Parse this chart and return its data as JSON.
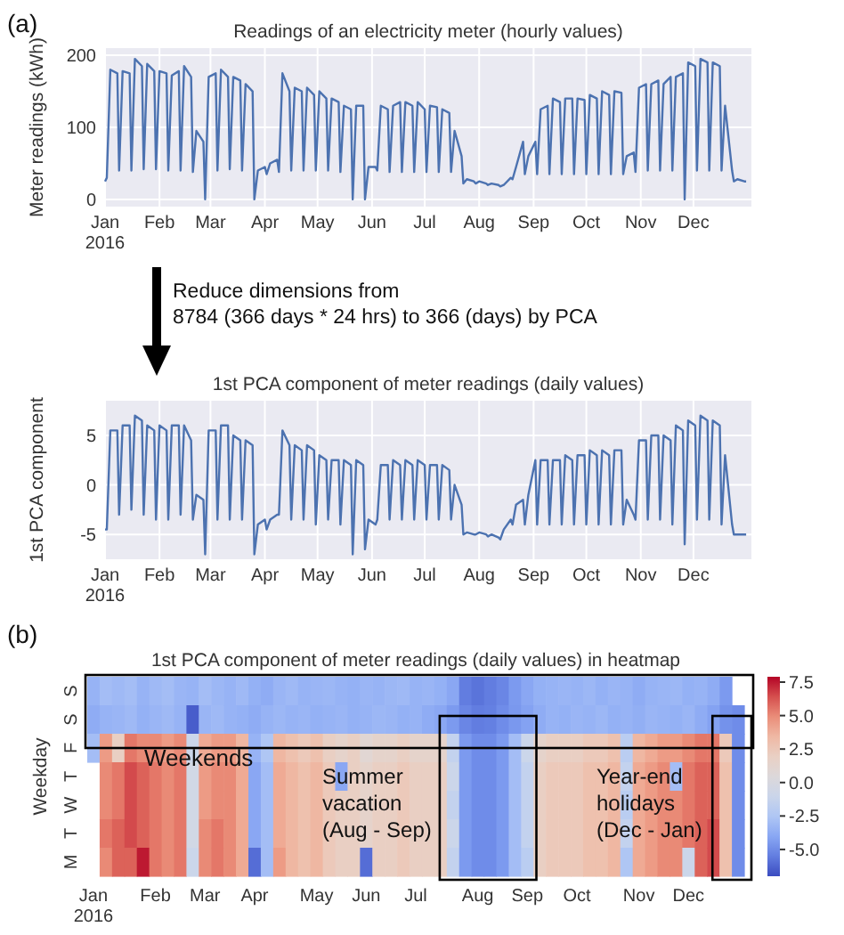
{
  "chart_data": [
    {
      "type": "line",
      "title": "Readings of an electricity meter (hourly values)",
      "ylabel": "Meter readings (kWh)",
      "grid": true,
      "xlim": [
        "2016-01-01",
        "2017-01-03"
      ],
      "ylim": [
        -10,
        210
      ],
      "yticks": [
        0,
        100,
        200
      ],
      "xticks": [
        {
          "value": "2016-01-01",
          "label": "Jan\n2016"
        },
        {
          "value": "2016-02-01",
          "label": "Feb"
        },
        {
          "value": "2016-03-01",
          "label": "Mar"
        },
        {
          "value": "2016-04-01",
          "label": "Apr"
        },
        {
          "value": "2016-05-01",
          "label": "May"
        },
        {
          "value": "2016-06-01",
          "label": "Jun"
        },
        {
          "value": "2016-07-01",
          "label": "Jul"
        },
        {
          "value": "2016-08-01",
          "label": "Aug"
        },
        {
          "value": "2016-09-01",
          "label": "Sep"
        },
        {
          "value": "2016-10-01",
          "label": "Oct"
        },
        {
          "value": "2016-11-01",
          "label": "Nov"
        },
        {
          "value": "2016-12-01",
          "label": "Dec"
        }
      ],
      "annotations": [
        "(a)"
      ],
      "x": [
        "2016-01-01",
        "2016-01-02",
        "2016-01-04",
        "2016-01-08",
        "2016-01-09",
        "2016-01-11",
        "2016-01-15",
        "2016-01-16",
        "2016-01-18",
        "2016-01-22",
        "2016-01-23",
        "2016-01-25",
        "2016-01-29",
        "2016-01-30",
        "2016-02-01",
        "2016-02-05",
        "2016-02-06",
        "2016-02-08",
        "2016-02-12",
        "2016-02-13",
        "2016-02-15",
        "2016-02-19",
        "2016-02-20",
        "2016-02-22",
        "2016-02-26",
        "2016-02-27",
        "2016-02-29",
        "2016-03-04",
        "2016-03-05",
        "2016-03-07",
        "2016-03-11",
        "2016-03-12",
        "2016-03-14",
        "2016-03-18",
        "2016-03-19",
        "2016-03-21",
        "2016-03-25",
        "2016-03-26",
        "2016-03-28",
        "2016-04-01",
        "2016-04-02",
        "2016-04-04",
        "2016-04-08",
        "2016-04-09",
        "2016-04-11",
        "2016-04-15",
        "2016-04-16",
        "2016-04-18",
        "2016-04-22",
        "2016-04-23",
        "2016-04-25",
        "2016-04-29",
        "2016-04-30",
        "2016-05-02",
        "2016-05-06",
        "2016-05-07",
        "2016-05-09",
        "2016-05-13",
        "2016-05-14",
        "2016-05-16",
        "2016-05-20",
        "2016-05-21",
        "2016-05-23",
        "2016-05-27",
        "2016-05-28",
        "2016-05-30",
        "2016-06-03",
        "2016-06-04",
        "2016-06-06",
        "2016-06-10",
        "2016-06-11",
        "2016-06-13",
        "2016-06-17",
        "2016-06-18",
        "2016-06-20",
        "2016-06-24",
        "2016-06-25",
        "2016-06-27",
        "2016-07-01",
        "2016-07-02",
        "2016-07-04",
        "2016-07-08",
        "2016-07-09",
        "2016-07-11",
        "2016-07-15",
        "2016-07-16",
        "2016-07-18",
        "2016-07-22",
        "2016-07-23",
        "2016-07-25",
        "2016-07-29",
        "2016-07-30",
        "2016-08-01",
        "2016-08-05",
        "2016-08-06",
        "2016-08-08",
        "2016-08-12",
        "2016-08-13",
        "2016-08-15",
        "2016-08-19",
        "2016-08-20",
        "2016-08-22",
        "2016-08-26",
        "2016-08-27",
        "2016-08-29",
        "2016-09-02",
        "2016-09-03",
        "2016-09-05",
        "2016-09-09",
        "2016-09-10",
        "2016-09-12",
        "2016-09-16",
        "2016-09-17",
        "2016-09-19",
        "2016-09-23",
        "2016-09-24",
        "2016-09-26",
        "2016-09-30",
        "2016-10-01",
        "2016-10-03",
        "2016-10-07",
        "2016-10-08",
        "2016-10-10",
        "2016-10-14",
        "2016-10-15",
        "2016-10-17",
        "2016-10-21",
        "2016-10-22",
        "2016-10-24",
        "2016-10-28",
        "2016-10-29",
        "2016-10-31",
        "2016-11-04",
        "2016-11-05",
        "2016-11-07",
        "2016-11-11",
        "2016-11-12",
        "2016-11-14",
        "2016-11-18",
        "2016-11-19",
        "2016-11-21",
        "2016-11-25",
        "2016-11-26",
        "2016-11-28",
        "2016-12-02",
        "2016-12-03",
        "2016-12-05",
        "2016-12-09",
        "2016-12-10",
        "2016-12-12",
        "2016-12-16",
        "2016-12-17",
        "2016-12-19",
        "2016-12-23",
        "2016-12-24",
        "2016-12-26",
        "2016-12-30",
        "2016-12-31"
      ],
      "series": [
        {
          "color": "#4c72b0",
          "values": [
            25,
            30,
            180,
            175,
            40,
            178,
            175,
            40,
            195,
            185,
            42,
            188,
            178,
            42,
            178,
            175,
            40,
            172,
            178,
            40,
            185,
            170,
            38,
            95,
            80,
            0,
            170,
            175,
            40,
            180,
            170,
            42,
            170,
            165,
            40,
            160,
            150,
            0,
            40,
            45,
            35,
            50,
            55,
            38,
            175,
            150,
            40,
            155,
            150,
            40,
            155,
            145,
            40,
            150,
            140,
            40,
            140,
            135,
            38,
            130,
            125,
            0,
            130,
            130,
            0,
            45,
            45,
            40,
            130,
            125,
            38,
            130,
            135,
            38,
            135,
            130,
            38,
            135,
            125,
            38,
            130,
            128,
            38,
            125,
            120,
            38,
            95,
            60,
            22,
            28,
            25,
            22,
            25,
            22,
            20,
            22,
            20,
            18,
            20,
            30,
            28,
            45,
            80,
            35,
            60,
            80,
            35,
            125,
            130,
            35,
            140,
            135,
            35,
            140,
            140,
            35,
            140,
            138,
            35,
            145,
            140,
            35,
            150,
            145,
            35,
            150,
            148,
            35,
            60,
            65,
            38,
            155,
            160,
            40,
            160,
            165,
            40,
            160,
            170,
            40,
            170,
            175,
            0,
            190,
            185,
            40,
            195,
            190,
            40,
            190,
            185,
            40,
            130,
            40,
            25,
            28,
            25,
            25
          ]
        }
      ]
    },
    {
      "type": "line",
      "title": "1st PCA component of meter readings (daily values)",
      "ylabel": "1st PCA component",
      "grid": true,
      "xlim": [
        "2016-01-01",
        "2017-01-03"
      ],
      "ylim": [
        -7.5,
        8.5
      ],
      "yticks": [
        -5,
        0,
        5
      ],
      "xticks": [
        {
          "value": "2016-01-01",
          "label": "Jan\n2016"
        },
        {
          "value": "2016-02-01",
          "label": "Feb"
        },
        {
          "value": "2016-03-01",
          "label": "Mar"
        },
        {
          "value": "2016-04-01",
          "label": "Apr"
        },
        {
          "value": "2016-05-01",
          "label": "May"
        },
        {
          "value": "2016-06-01",
          "label": "Jun"
        },
        {
          "value": "2016-07-01",
          "label": "Jul"
        },
        {
          "value": "2016-08-01",
          "label": "Aug"
        },
        {
          "value": "2016-09-01",
          "label": "Sep"
        },
        {
          "value": "2016-10-01",
          "label": "Oct"
        },
        {
          "value": "2016-11-01",
          "label": "Nov"
        },
        {
          "value": "2016-12-01",
          "label": "Dec"
        }
      ],
      "annotations": [
        "Reduce dimensions from\n8784 (366 days * 24 hrs) to 366 (days) by PCA"
      ],
      "x": [
        "2016-01-01",
        "2016-01-02",
        "2016-01-04",
        "2016-01-08",
        "2016-01-09",
        "2016-01-11",
        "2016-01-15",
        "2016-01-16",
        "2016-01-18",
        "2016-01-22",
        "2016-01-23",
        "2016-01-25",
        "2016-01-29",
        "2016-01-30",
        "2016-02-01",
        "2016-02-05",
        "2016-02-06",
        "2016-02-08",
        "2016-02-12",
        "2016-02-13",
        "2016-02-15",
        "2016-02-19",
        "2016-02-20",
        "2016-02-22",
        "2016-02-26",
        "2016-02-27",
        "2016-02-29",
        "2016-03-04",
        "2016-03-05",
        "2016-03-07",
        "2016-03-11",
        "2016-03-12",
        "2016-03-14",
        "2016-03-18",
        "2016-03-19",
        "2016-03-21",
        "2016-03-25",
        "2016-03-26",
        "2016-03-28",
        "2016-04-01",
        "2016-04-02",
        "2016-04-04",
        "2016-04-08",
        "2016-04-09",
        "2016-04-11",
        "2016-04-15",
        "2016-04-16",
        "2016-04-18",
        "2016-04-22",
        "2016-04-23",
        "2016-04-25",
        "2016-04-29",
        "2016-04-30",
        "2016-05-02",
        "2016-05-06",
        "2016-05-07",
        "2016-05-09",
        "2016-05-13",
        "2016-05-14",
        "2016-05-16",
        "2016-05-20",
        "2016-05-21",
        "2016-05-23",
        "2016-05-27",
        "2016-05-28",
        "2016-05-30",
        "2016-06-03",
        "2016-06-04",
        "2016-06-06",
        "2016-06-10",
        "2016-06-11",
        "2016-06-13",
        "2016-06-17",
        "2016-06-18",
        "2016-06-20",
        "2016-06-24",
        "2016-06-25",
        "2016-06-27",
        "2016-07-01",
        "2016-07-02",
        "2016-07-04",
        "2016-07-08",
        "2016-07-09",
        "2016-07-11",
        "2016-07-15",
        "2016-07-16",
        "2016-07-18",
        "2016-07-22",
        "2016-07-23",
        "2016-07-25",
        "2016-07-29",
        "2016-07-30",
        "2016-08-01",
        "2016-08-05",
        "2016-08-06",
        "2016-08-08",
        "2016-08-12",
        "2016-08-13",
        "2016-08-15",
        "2016-08-19",
        "2016-08-20",
        "2016-08-22",
        "2016-08-26",
        "2016-08-27",
        "2016-08-29",
        "2016-09-02",
        "2016-09-03",
        "2016-09-05",
        "2016-09-09",
        "2016-09-10",
        "2016-09-12",
        "2016-09-16",
        "2016-09-17",
        "2016-09-19",
        "2016-09-23",
        "2016-09-24",
        "2016-09-26",
        "2016-09-30",
        "2016-10-01",
        "2016-10-03",
        "2016-10-07",
        "2016-10-08",
        "2016-10-10",
        "2016-10-14",
        "2016-10-15",
        "2016-10-17",
        "2016-10-21",
        "2016-10-22",
        "2016-10-24",
        "2016-10-28",
        "2016-10-29",
        "2016-10-31",
        "2016-11-04",
        "2016-11-05",
        "2016-11-07",
        "2016-11-11",
        "2016-11-12",
        "2016-11-14",
        "2016-11-18",
        "2016-11-19",
        "2016-11-21",
        "2016-11-25",
        "2016-11-26",
        "2016-11-28",
        "2016-12-02",
        "2016-12-03",
        "2016-12-05",
        "2016-12-09",
        "2016-12-10",
        "2016-12-12",
        "2016-12-16",
        "2016-12-17",
        "2016-12-19",
        "2016-12-23",
        "2016-12-24",
        "2016-12-26",
        "2016-12-30",
        "2016-12-31"
      ],
      "series": [
        {
          "color": "#4c72b0",
          "values": [
            -4.5,
            -4.5,
            5.5,
            5.5,
            -3,
            6,
            6,
            -2.5,
            7,
            6.5,
            -3,
            6,
            5.5,
            -3.5,
            6,
            5.5,
            -3.5,
            6,
            6,
            -3,
            6,
            4.5,
            -3.5,
            -1,
            -1.5,
            -7,
            5.5,
            5.5,
            -3.5,
            6,
            6,
            -3.5,
            5,
            4.5,
            -3.5,
            4.5,
            4,
            -7,
            -4,
            -3.5,
            -4.5,
            -3.5,
            -3,
            -3,
            5.5,
            4,
            -3.5,
            4,
            3.5,
            -3.5,
            4,
            3.5,
            -4,
            3,
            2.5,
            -3.5,
            2.5,
            2.5,
            -4,
            2.5,
            2,
            -7,
            2.5,
            2,
            -6.5,
            -3.5,
            -4,
            -3.5,
            2,
            2,
            -3.5,
            2.5,
            2,
            -3.5,
            2.5,
            2,
            -3.5,
            2.5,
            2,
            -3.5,
            2,
            2,
            -3.5,
            2,
            1.5,
            -3.5,
            0,
            -2,
            -5,
            -4.8,
            -5,
            -5,
            -4.8,
            -5,
            -5.2,
            -5,
            -5.3,
            -5.5,
            -4.5,
            -3.5,
            -4,
            -2,
            -1.5,
            -4,
            -1,
            2.5,
            -4,
            2.5,
            2.5,
            -4,
            2.5,
            2.5,
            -4,
            3,
            2.5,
            -4,
            3,
            3,
            -4,
            3.5,
            3,
            -4,
            3.5,
            3,
            -4,
            3.5,
            3.5,
            -4,
            -1.5,
            -3,
            -3.5,
            4.5,
            4.5,
            -3.5,
            5,
            5,
            -3.5,
            5,
            4.5,
            -4,
            6,
            5.5,
            -6,
            6.5,
            6,
            -3.5,
            7,
            6.5,
            -3.5,
            6.5,
            6,
            -4,
            3,
            -4,
            -5,
            -5,
            -5,
            -5
          ]
        }
      ]
    },
    {
      "type": "heatmap",
      "title": "1st PCA component of meter readings (daily values) in heatmap",
      "ylabel": "Weekday",
      "categories": [
        "Jan\n2016",
        null,
        null,
        null,
        null,
        "Feb",
        null,
        null,
        null,
        "Mar",
        null,
        null,
        null,
        "Apr",
        null,
        null,
        null,
        null,
        "May",
        null,
        null,
        null,
        "Jun",
        null,
        null,
        null,
        "Jul",
        null,
        null,
        null,
        null,
        "Aug",
        null,
        null,
        null,
        "Sep",
        null,
        null,
        null,
        "Oct",
        null,
        null,
        null,
        null,
        "Nov",
        null,
        null,
        null,
        "Dec",
        null,
        null,
        null,
        null
      ],
      "y_categories": [
        "S",
        "S",
        "F",
        "T",
        "W",
        "T",
        "M"
      ],
      "clim": [
        -7,
        7.9
      ],
      "cticks": [
        {
          "value": 7.5,
          "label": "7.5"
        },
        {
          "value": 5,
          "label": "5.0"
        },
        {
          "value": 2.5,
          "label": "2.5"
        },
        {
          "value": 0,
          "label": "0.0"
        },
        {
          "value": -2.5,
          "label": "-2.5"
        },
        {
          "value": -5,
          "label": "-5.0"
        }
      ],
      "annotations": [
        "(b)",
        "Weekends",
        "Summer\nvacation\n(Aug - Sep)",
        "Year-end\nholidays\n(Dec - Jan)"
      ],
      "cells": [
        [
          -3.5,
          -3,
          -3.2,
          -3,
          -3.5,
          -3.2,
          -3,
          -3.4,
          -3.5,
          -3,
          -3.3,
          -3.5,
          -3.2,
          -3.6,
          -3.8,
          -3.4,
          -3.2,
          -3.5,
          -3.4,
          -3.3,
          -3.5,
          -3.6,
          -3.4,
          -3.5,
          -3.3,
          -3.2,
          -3.5,
          -3.4,
          -3.6,
          -4,
          -5.5,
          -5.8,
          -5.5,
          -5.2,
          -4.5,
          -4,
          -3.6,
          -3.5,
          -3.4,
          -3.5,
          -3.3,
          -3.6,
          -3.4,
          -3.5,
          -3.8,
          -3.5,
          -3.4,
          -3.3,
          -3.6,
          -3.5,
          -3.8,
          -4.5,
          null
        ],
        [
          -3.8,
          -3.5,
          -3.4,
          -3.2,
          -3.6,
          -3.4,
          -3.2,
          -3.5,
          -6.5,
          -3.4,
          -3.2,
          -3.5,
          -3.6,
          -3.8,
          -3.5,
          -3.3,
          -3.5,
          -3.4,
          -3.6,
          -3.5,
          -3.4,
          -3.6,
          -3.5,
          -3.3,
          -3.4,
          -3.6,
          -3.5,
          -3.8,
          -4,
          -4.5,
          -5.2,
          -5.5,
          -5.4,
          -5,
          -4.6,
          -4.2,
          -3.8,
          -3.5,
          -3.6,
          -3.4,
          -3.5,
          -3.3,
          -3.6,
          -3.5,
          -3.7,
          -3.4,
          -3.5,
          -3.6,
          -3.4,
          -3.8,
          -4.2,
          -4.8,
          -5
        ],
        [
          -3,
          4.5,
          2,
          5.5,
          5,
          5,
          4.5,
          5,
          -1,
          4,
          4.5,
          4.5,
          3.5,
          -3.5,
          -2.5,
          3.5,
          3,
          2.5,
          3,
          2,
          1.5,
          2,
          1,
          1.5,
          1.5,
          2,
          1.5,
          1.5,
          1.5,
          -1.5,
          -4.5,
          -5,
          -5,
          -4.5,
          -3,
          -1,
          1.5,
          2,
          2,
          2,
          2.5,
          2.5,
          3,
          -2,
          3.5,
          4,
          4.5,
          4.5,
          5,
          5.5,
          5.5,
          2.5,
          -5
        ],
        [
          null,
          5,
          5.5,
          6.5,
          6,
          5.5,
          5,
          5.5,
          -0.5,
          4.5,
          5,
          5,
          4,
          -4,
          -3,
          4,
          3.5,
          3,
          3.5,
          2.5,
          -4,
          2,
          1.5,
          2,
          2,
          2.5,
          2,
          2,
          2,
          -1,
          -4.5,
          -5,
          -5,
          -4.5,
          -3,
          -1.5,
          2,
          2.5,
          2.5,
          2.5,
          3,
          3,
          3.5,
          -1.5,
          4,
          4.5,
          5,
          -3,
          5.5,
          6,
          6,
          3,
          -5
        ],
        [
          null,
          5,
          5.5,
          6.5,
          6,
          5.5,
          5,
          5.5,
          -0.5,
          4.5,
          5,
          5,
          4,
          -4,
          -3,
          4,
          3.5,
          3,
          3.5,
          2.5,
          2,
          2,
          1.5,
          2,
          2,
          2.5,
          2,
          2,
          2,
          -1.5,
          -4.5,
          -5,
          -5,
          -4.5,
          -3,
          -1.5,
          2,
          2.5,
          2.5,
          2.5,
          3,
          3,
          3.5,
          -2,
          4,
          4.5,
          5,
          5,
          5.5,
          6,
          6,
          3,
          -5
        ],
        [
          null,
          5.5,
          6,
          6.5,
          6,
          5.5,
          5,
          5.5,
          -0.5,
          5,
          5.5,
          5,
          4,
          -4,
          -3,
          4,
          3.5,
          3,
          3.5,
          2.5,
          2,
          2,
          1.5,
          2,
          2,
          2.5,
          2,
          2,
          2,
          -1,
          -4.5,
          -5,
          -5,
          -4.5,
          -3,
          -1.5,
          2,
          2.5,
          2.5,
          2.5,
          3,
          3,
          3.5,
          -1.5,
          4,
          4.5,
          5,
          5,
          5.5,
          6,
          6.5,
          3,
          -5
        ],
        [
          null,
          5,
          6,
          6,
          7.5,
          5.5,
          5,
          5.5,
          -1,
          5,
          5.5,
          5,
          4,
          -6,
          -3,
          4.5,
          3.5,
          3,
          3.5,
          2.5,
          2,
          2,
          -6,
          2,
          2,
          2.5,
          2,
          2,
          2,
          -1.5,
          -4.5,
          -5,
          -5,
          -4.5,
          -3,
          -2,
          2,
          2.5,
          2.5,
          2.5,
          3,
          3,
          3.5,
          -2.5,
          4,
          4.5,
          5,
          5,
          -1,
          6,
          6.5,
          3,
          -5
        ]
      ]
    }
  ]
}
